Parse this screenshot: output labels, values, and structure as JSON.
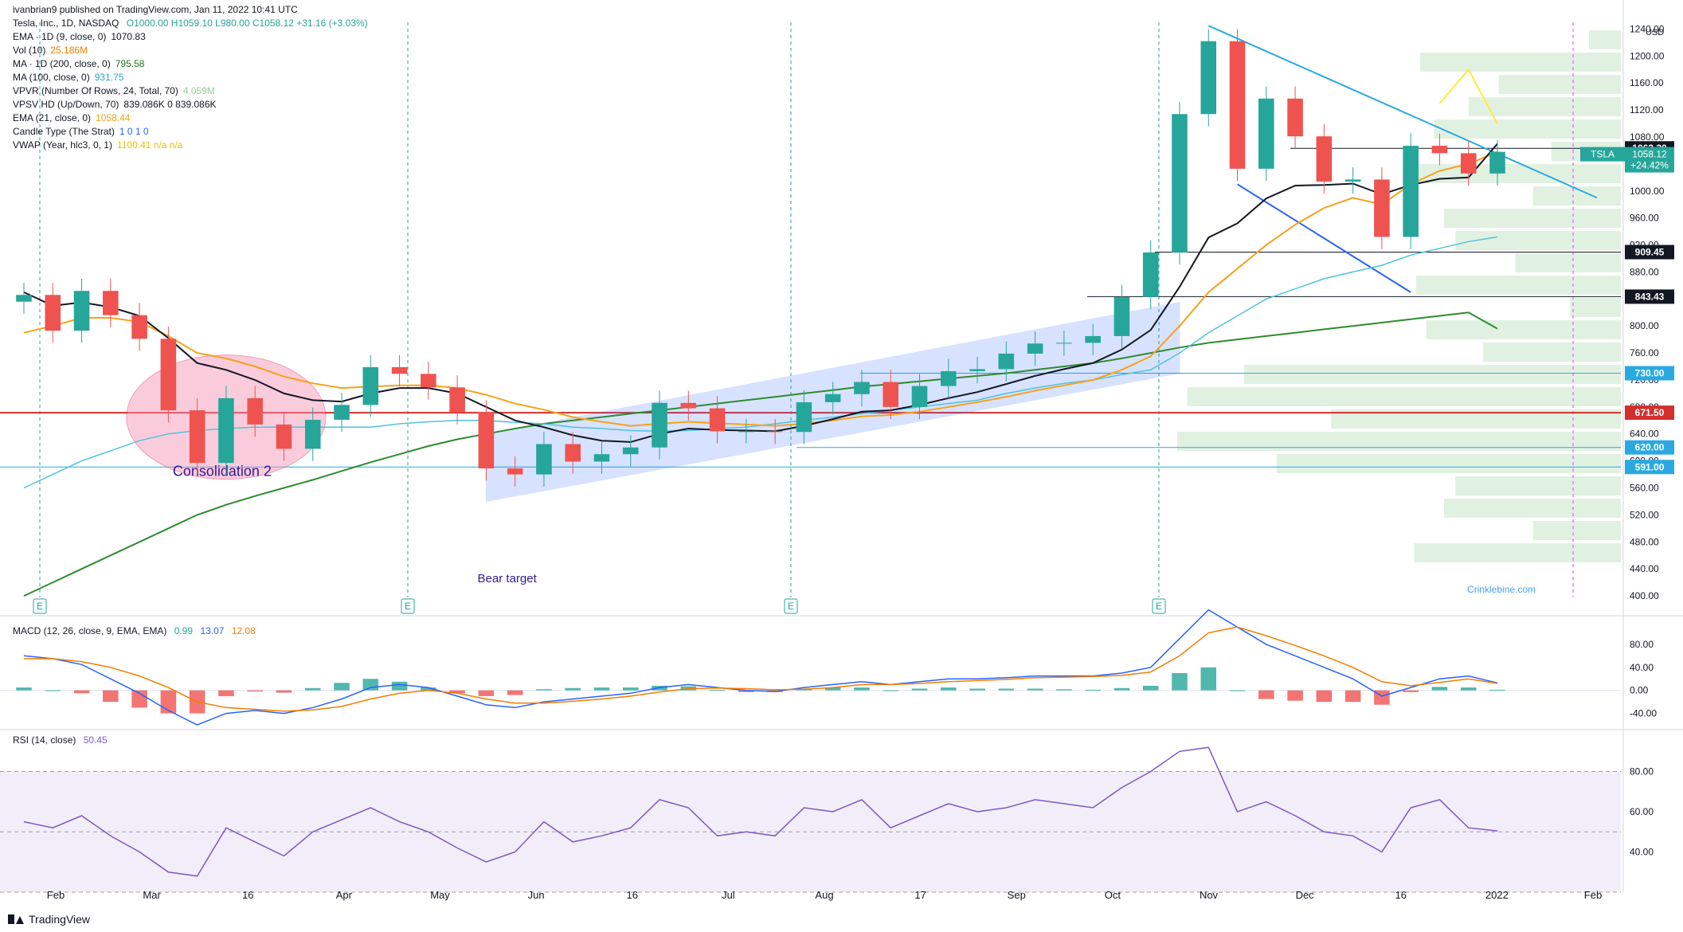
{
  "header": {
    "author_line": "ivanbrian9 published on TradingView.com, Jan 11, 2022 10:41 UTC",
    "symbol_line": "Tesla, Inc., 1D, NASDAQ",
    "ohlc": "O1000.00  H1059.10  L980.00  C1058.12  +31.16 (+3.03%)",
    "ohlc_color": "#26a69a"
  },
  "indicators": [
    {
      "label": "EMA · 1D (9, close, 0)",
      "value": "1070.83",
      "color": "#131722"
    },
    {
      "label": "Vol (10)",
      "value": "25.186M",
      "color": "#f57c00"
    },
    {
      "label": "MA · 1D (200, close, 0)",
      "value": "795.58",
      "color": "#1b7b1b"
    },
    {
      "label": "MA (100, close, 0)",
      "value": "931.75",
      "color": "#26a6c8"
    },
    {
      "label": "VPVR (Number Of Rows, 24, Total, 70)",
      "value": "4.059M",
      "color": "#9ccc9c"
    },
    {
      "label": "VPSV HD (Up/Down, 70)",
      "value": "839.086K  0  839.086K",
      "color": "#131722"
    },
    {
      "label": "EMA (21, close, 0)",
      "value": "1058.44",
      "color": "#f7a21b"
    },
    {
      "label": "Candle Type (The Strat)",
      "value": "1  0  1  0",
      "color": "#2962ff"
    },
    {
      "label": "VWAP (Year, hlc3, 0, 1)",
      "value": "1100.41  n/a  n/a",
      "color": "#e6c300"
    }
  ],
  "macd": {
    "label": "MACD (12, 26, close, 9, EMA, EMA)",
    "hist": "0.99",
    "macd": "13.07",
    "signal": "12.08"
  },
  "rsi": {
    "label": "RSI (14, close)",
    "value": "50.45"
  },
  "annotations": {
    "consolidation": "Consolidation 2",
    "bear_target": "Bear target",
    "watermark": "Crinklebine.com",
    "earnings_marker": "E"
  },
  "price_axis": {
    "unit": "USD",
    "ticks": [
      "1240.00",
      "1200.00",
      "1160.00",
      "1120.00",
      "1080.00",
      "1040.00",
      "1000.00",
      "960.00",
      "920.00",
      "880.00",
      "840.00",
      "800.00",
      "760.00",
      "720.00",
      "680.00",
      "640.00",
      "600.00",
      "560.00",
      "520.00",
      "480.00",
      "440.00",
      "400.00"
    ],
    "badges": {
      "tsla": {
        "symbol": "TSLA",
        "price": "1058.12",
        "change": "+24.42%"
      },
      "levels": [
        "1063.20",
        "909.45",
        "843.43",
        "730.00",
        "671.50",
        "620.00",
        "591.00"
      ]
    }
  },
  "macd_axis": {
    "ticks": [
      "80.00",
      "40.00",
      "0.00",
      "-40.00"
    ]
  },
  "rsi_axis": {
    "ticks": [
      "80.00",
      "60.00",
      "40.00"
    ]
  },
  "time_axis": {
    "labels": [
      "Feb",
      "Mar",
      "16",
      "Apr",
      "May",
      "Jun",
      "16",
      "Jul",
      "Aug",
      "17",
      "Sep",
      "Oct",
      "Nov",
      "Dec",
      "16",
      "2022",
      "Feb"
    ]
  },
  "footer": {
    "brand": "TradingView"
  },
  "colors": {
    "up": "#26a69a",
    "down": "#ef5350",
    "ema9": "#131722",
    "ema21": "#f7a21b",
    "ma100": "#4fc3dc",
    "ma200": "#2e8b2e",
    "vwap": "#ffeb3b",
    "channel": "#2962ff",
    "red_line": "#d32f2f",
    "cyan_line": "#29a9e0"
  },
  "chart_data": {
    "type": "candlestick",
    "symbol": "TSLA",
    "interval": "1D",
    "exchange": "NASDAQ",
    "ylim": [
      380,
      1250
    ],
    "x": [
      "2021-01-22",
      "2021-01-29",
      "2021-02-05",
      "2021-02-12",
      "2021-02-19",
      "2021-02-26",
      "2021-03-05",
      "2021-03-12",
      "2021-03-19",
      "2021-03-26",
      "2021-04-02",
      "2021-04-09",
      "2021-04-16",
      "2021-04-23",
      "2021-04-30",
      "2021-05-07",
      "2021-05-14",
      "2021-05-21",
      "2021-05-28",
      "2021-06-04",
      "2021-06-11",
      "2021-06-18",
      "2021-06-25",
      "2021-07-02",
      "2021-07-09",
      "2021-07-16",
      "2021-07-23",
      "2021-07-30",
      "2021-08-06",
      "2021-08-13",
      "2021-08-20",
      "2021-08-27",
      "2021-09-03",
      "2021-09-10",
      "2021-09-17",
      "2021-09-24",
      "2021-10-01",
      "2021-10-08",
      "2021-10-15",
      "2021-10-22",
      "2021-10-29",
      "2021-11-05",
      "2021-11-12",
      "2021-11-19",
      "2021-11-26",
      "2021-12-03",
      "2021-12-10",
      "2021-12-17",
      "2021-12-24",
      "2021-12-31",
      "2022-01-07",
      "2022-01-10"
    ],
    "close": [
      846,
      793,
      852,
      816,
      781,
      675,
      597,
      693,
      654,
      618,
      661,
      683,
      739,
      729,
      709,
      672,
      589,
      580,
      625,
      599,
      610,
      620,
      686,
      678,
      644,
      644,
      643,
      687,
      699,
      717,
      680,
      711,
      733,
      736,
      759,
      774,
      775,
      785,
      843,
      909,
      1114,
      1222,
      1033,
      1137,
      1081,
      1014,
      1017,
      932,
      1067,
      1056,
      1026,
      1058
    ],
    "ema9": [
      850,
      830,
      835,
      828,
      815,
      782,
      745,
      735,
      720,
      700,
      690,
      688,
      700,
      708,
      708,
      700,
      680,
      660,
      650,
      638,
      630,
      628,
      640,
      648,
      646,
      645,
      644,
      652,
      662,
      673,
      675,
      683,
      693,
      702,
      714,
      726,
      736,
      745,
      765,
      794,
      858,
      931,
      952,
      989,
      1008,
      1009,
      1011,
      995,
      1009,
      1018,
      1020,
      1070
    ],
    "ema21": [
      790,
      800,
      812,
      812,
      806,
      785,
      760,
      752,
      740,
      725,
      715,
      708,
      710,
      712,
      712,
      708,
      698,
      685,
      676,
      665,
      658,
      652,
      655,
      658,
      656,
      654,
      652,
      655,
      660,
      666,
      668,
      673,
      680,
      687,
      695,
      704,
      712,
      720,
      735,
      755,
      800,
      850,
      885,
      920,
      950,
      975,
      990,
      980,
      1010,
      1030,
      1040,
      1058
    ],
    "ma100": [
      560,
      580,
      600,
      615,
      630,
      640,
      645,
      648,
      650,
      650,
      650,
      650,
      650,
      655,
      658,
      660,
      660,
      657,
      655,
      650,
      648,
      645,
      644,
      645,
      648,
      650,
      655,
      660,
      665,
      670,
      675,
      680,
      685,
      690,
      700,
      708,
      715,
      720,
      728,
      735,
      760,
      790,
      815,
      840,
      855,
      870,
      880,
      890,
      905,
      915,
      925,
      932
    ],
    "ma200": [
      400,
      420,
      440,
      460,
      480,
      500,
      520,
      535,
      548,
      560,
      572,
      585,
      598,
      610,
      622,
      632,
      640,
      648,
      655,
      660,
      665,
      670,
      675,
      680,
      685,
      690,
      695,
      700,
      705,
      710,
      714,
      718,
      722,
      726,
      730,
      735,
      740,
      745,
      752,
      760,
      768,
      775,
      780,
      785,
      790,
      795,
      800,
      805,
      810,
      815,
      820,
      796
    ],
    "vwap": [
      null,
      null,
      null,
      null,
      null,
      null,
      null,
      null,
      null,
      null,
      null,
      null,
      null,
      null,
      null,
      null,
      null,
      null,
      null,
      null,
      null,
      null,
      null,
      null,
      null,
      null,
      null,
      null,
      null,
      null,
      null,
      null,
      null,
      null,
      null,
      null,
      null,
      null,
      null,
      null,
      null,
      null,
      null,
      null,
      null,
      null,
      null,
      null,
      null,
      1130,
      1180,
      1100
    ],
    "annotation_levels": [
      1063.2,
      909.45,
      843.43,
      730.0,
      671.5,
      620.0,
      591.0
    ],
    "macd": {
      "macd": [
        60,
        55,
        45,
        20,
        -5,
        -35,
        -60,
        -40,
        -35,
        -40,
        -30,
        -15,
        5,
        10,
        5,
        -10,
        -25,
        -30,
        -20,
        -15,
        -10,
        -5,
        5,
        10,
        5,
        0,
        -2,
        5,
        10,
        15,
        10,
        15,
        20,
        20,
        22,
        25,
        25,
        25,
        30,
        40,
        90,
        140,
        110,
        80,
        60,
        40,
        20,
        -10,
        5,
        20,
        25,
        13
      ],
      "signal": [
        55,
        55,
        50,
        40,
        25,
        5,
        -20,
        -30,
        -33,
        -36,
        -34,
        -28,
        -15,
        -5,
        0,
        -5,
        -15,
        -22,
        -22,
        -19,
        -15,
        -10,
        -3,
        3,
        4,
        3,
        1,
        2,
        5,
        10,
        10,
        12,
        15,
        17,
        19,
        22,
        23,
        24,
        26,
        32,
        60,
        100,
        110,
        95,
        78,
        60,
        40,
        15,
        8,
        14,
        20,
        12
      ],
      "ylim": [
        -60,
        120
      ]
    },
    "rsi": {
      "values": [
        55,
        52,
        58,
        48,
        40,
        30,
        28,
        52,
        45,
        38,
        50,
        56,
        62,
        55,
        50,
        42,
        35,
        40,
        55,
        45,
        48,
        52,
        66,
        62,
        48,
        50,
        48,
        62,
        60,
        66,
        52,
        58,
        64,
        60,
        62,
        66,
        64,
        62,
        72,
        80,
        90,
        92,
        60,
        65,
        58,
        50,
        48,
        40,
        62,
        66,
        52,
        50.45
      ],
      "ylim": [
        20,
        100
      ],
      "overbought": 80,
      "oversold": 20
    }
  }
}
